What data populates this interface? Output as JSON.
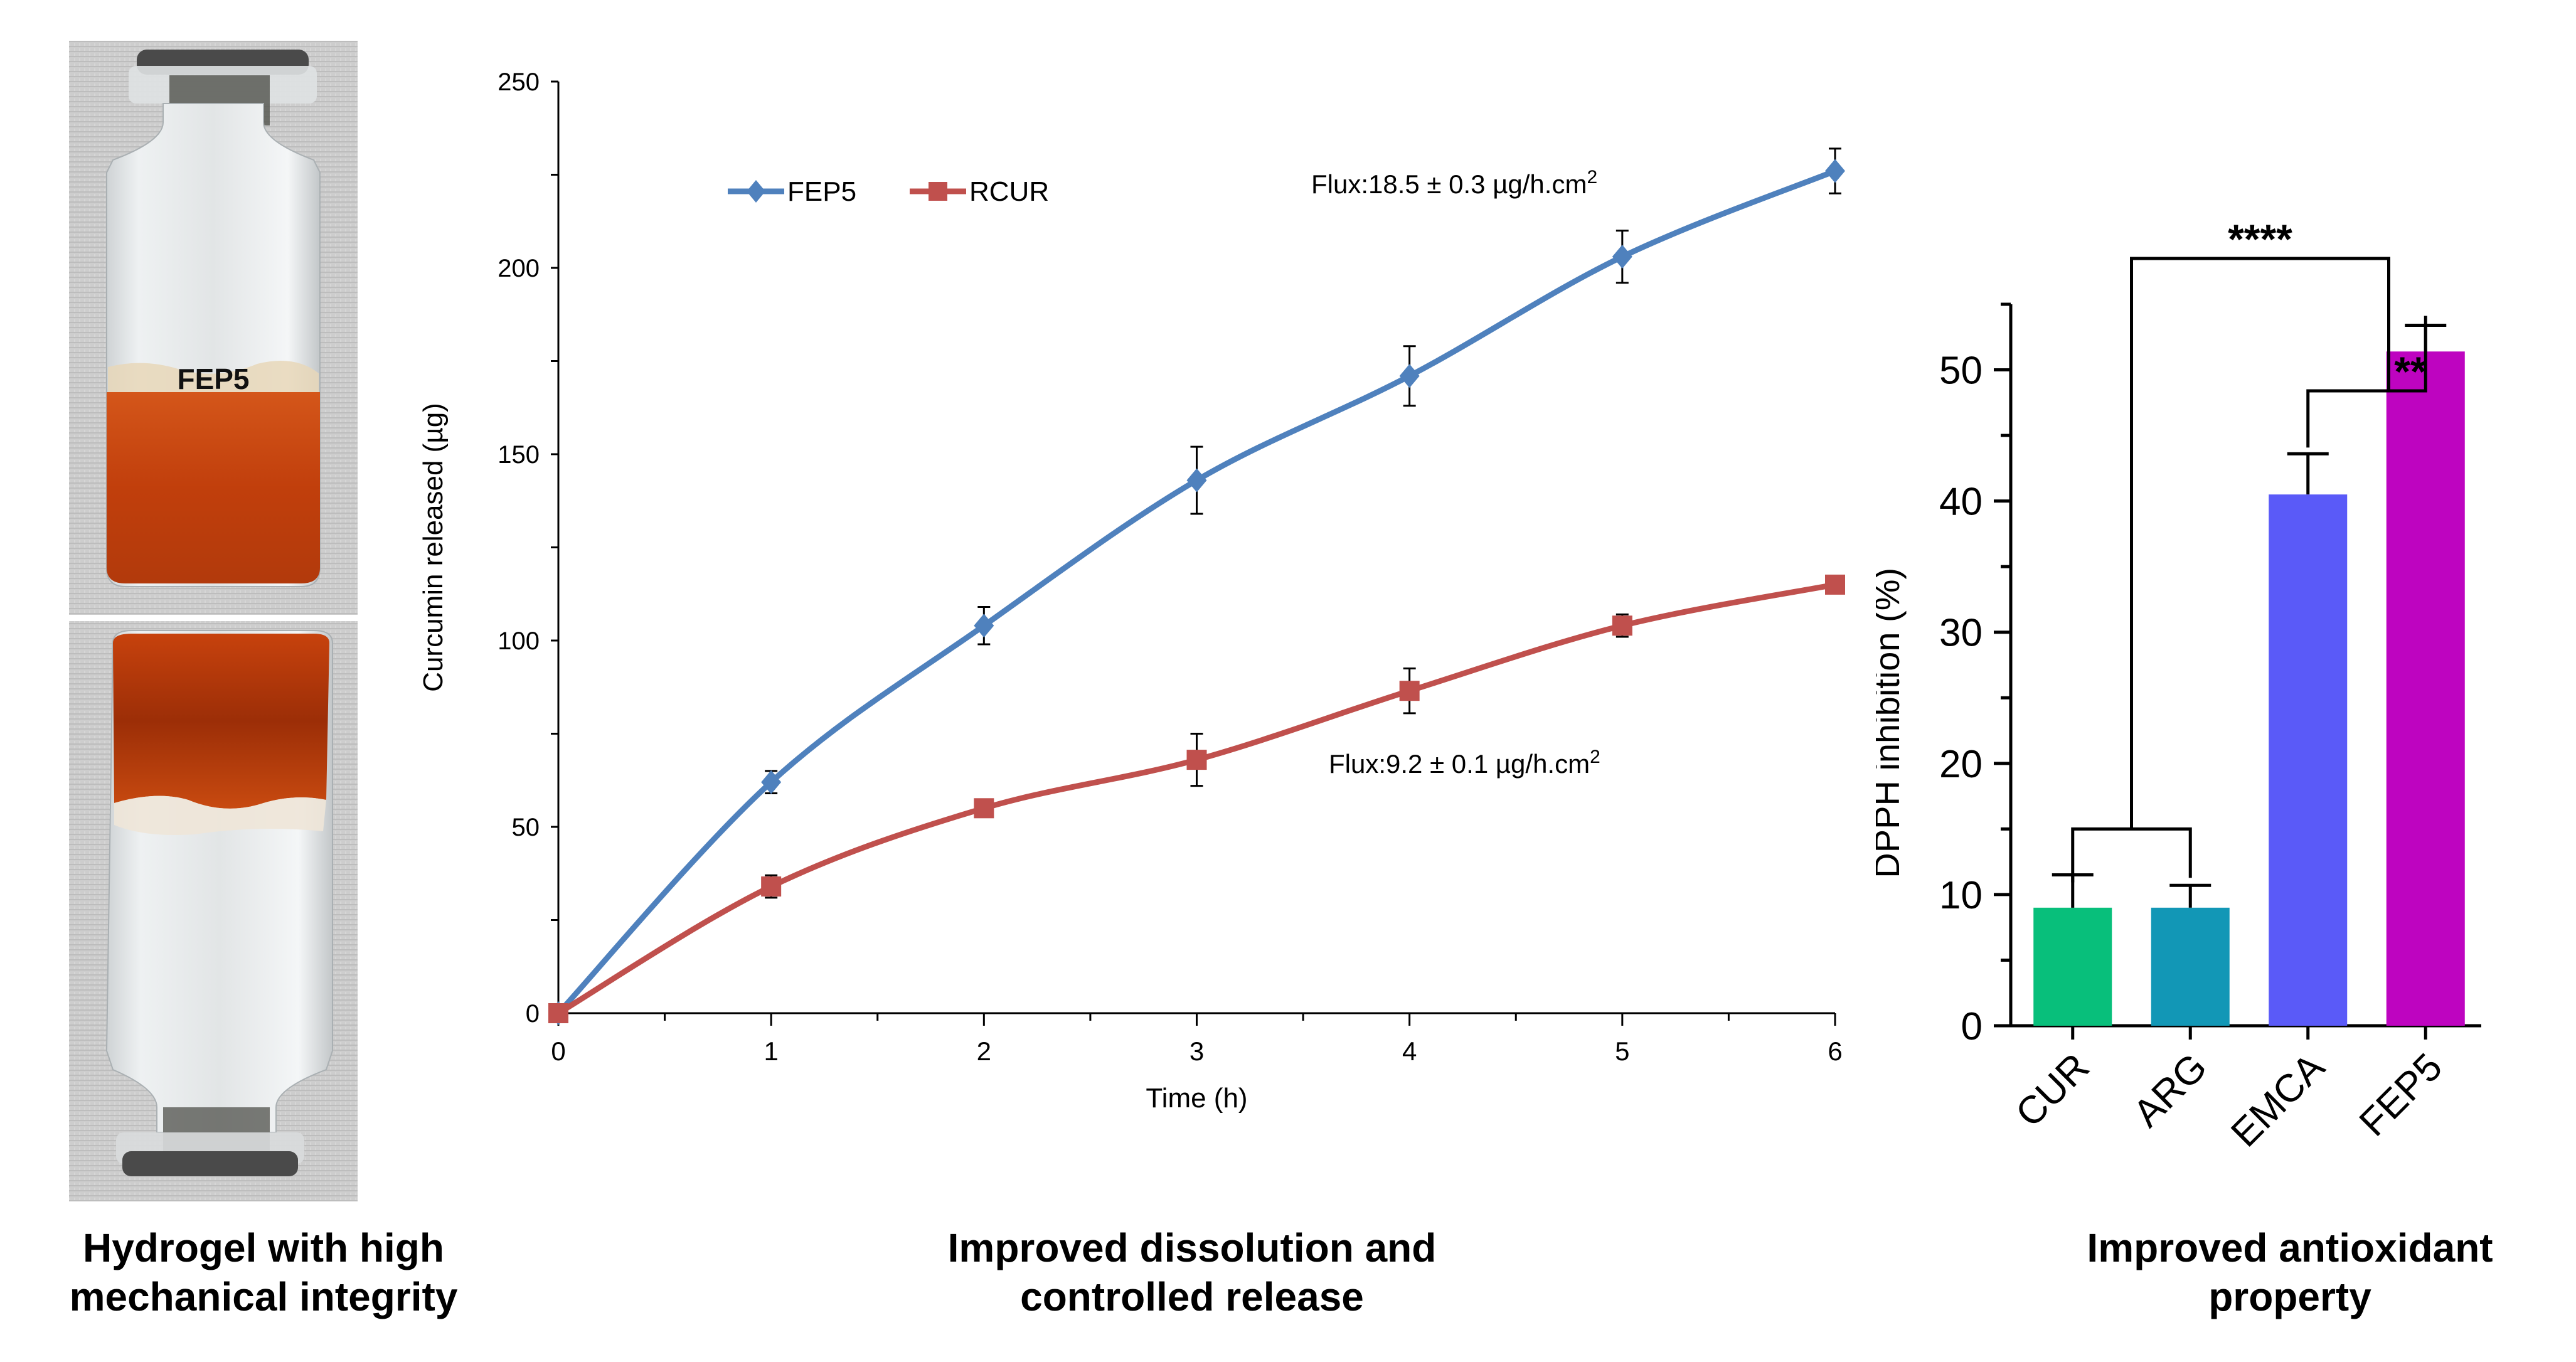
{
  "photo": {
    "label": "FEP5",
    "alt": "Two photos of a glass vial with orange curcumin hydrogel, upright and inverted",
    "colors": {
      "background": "#c9c9c9",
      "gel": "#c8460f",
      "gel_dark": "#9a2e08",
      "cap": "#4a4a4a",
      "glass": "#e6e9ea"
    }
  },
  "captions": [
    {
      "line1": "Hydrogel with high",
      "line2": "mechanical integrity"
    },
    {
      "line1": "Improved dissolution and",
      "line2": "controlled release"
    },
    {
      "line1": "Improved antioxidant",
      "line2": "property"
    }
  ],
  "chart_data": [
    {
      "type": "line",
      "title": "",
      "xlabel": "Time (h)",
      "ylabel": "Curcumin released (µg)",
      "x": [
        0,
        1,
        2,
        3,
        4,
        5,
        6
      ],
      "xlim": [
        0,
        6
      ],
      "ylim": [
        0,
        250
      ],
      "xticks": [
        "0",
        "1",
        "2",
        "3",
        "4",
        "5",
        "6"
      ],
      "yticks": [
        "0",
        "50",
        "100",
        "150",
        "200",
        "250"
      ],
      "grid": false,
      "legend": {
        "placement": "top-left",
        "entries": [
          "FEP5",
          "RCUR"
        ]
      },
      "series": [
        {
          "name": "FEP5",
          "color": "#4f81bd",
          "marker": "diamond",
          "values": [
            0,
            62,
            104,
            143,
            171,
            203,
            226
          ],
          "errors": [
            0,
            3,
            5,
            9,
            8,
            7,
            6
          ]
        },
        {
          "name": "RCUR",
          "color": "#c0504d",
          "marker": "square",
          "values": [
            0,
            34,
            55,
            68,
            86.5,
            104,
            115
          ],
          "errors": [
            0,
            3,
            1.5,
            7,
            6,
            3,
            1.5
          ]
        }
      ],
      "annotations": [
        {
          "text": "Flux:18.5 ± 0.3 µg/h.cm",
          "sup": "2",
          "series": "FEP5"
        },
        {
          "text": "Flux:9.2 ± 0.1 µg/h.cm",
          "sup": "2",
          "series": "RCUR"
        }
      ]
    },
    {
      "type": "bar",
      "title": "",
      "xlabel": "",
      "ylabel": "DPPH inhibition (%)",
      "categories": [
        "CUR",
        "ARG",
        "EMCA",
        "FEP5"
      ],
      "values": [
        9.0,
        9.0,
        40.5,
        51.4
      ],
      "errors": [
        2.5,
        1.7,
        3.1,
        2.0
      ],
      "colors": [
        "#08bf7b",
        "#1297b6",
        "#5a5af8",
        "#be04c0"
      ],
      "ylim": [
        0,
        55
      ],
      "yticks": [
        "0",
        "10",
        "20",
        "30",
        "40",
        "50"
      ],
      "grid": false,
      "significance": [
        {
          "groups": [
            "CUR+ARG",
            "EMCA+FEP5"
          ],
          "label": "****"
        },
        {
          "groups": [
            "EMCA",
            "FEP5"
          ],
          "label": "**"
        }
      ]
    }
  ]
}
